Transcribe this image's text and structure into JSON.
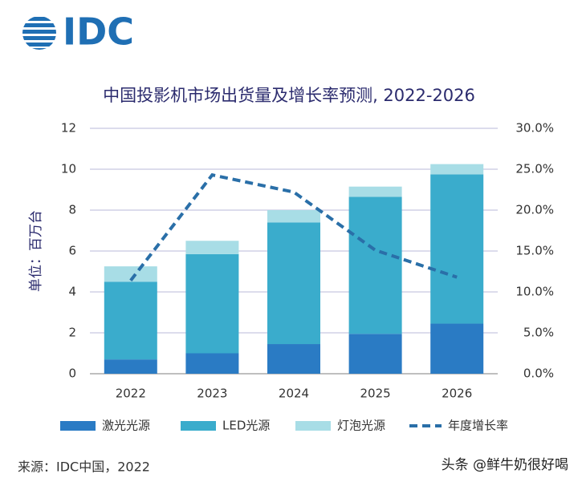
{
  "logo": "IDC",
  "chart_data": {
    "type": "bar",
    "stacked": true,
    "title": "中国投影机市场出货量及增长率预测, 2022-2026",
    "y_label": "单位：百万台",
    "categories": [
      "2022",
      "2023",
      "2024",
      "2025",
      "2026"
    ],
    "series": [
      {
        "name": "激光光源",
        "color": "#2a7bc4",
        "values": [
          0.7,
          1.0,
          1.45,
          1.95,
          2.45
        ]
      },
      {
        "name": "LED光源",
        "color": "#3aaccc",
        "values": [
          3.8,
          4.85,
          5.95,
          6.7,
          7.3
        ]
      },
      {
        "name": "灯泡光源",
        "color": "#a8dde6",
        "values": [
          0.75,
          0.65,
          0.6,
          0.5,
          0.5
        ]
      },
      {
        "name": "年度增长率",
        "color": "#2a6fa8",
        "type": "line",
        "axis": "y2",
        "values": [
          11.4,
          24.3,
          22.2,
          15.1,
          11.8
        ]
      }
    ],
    "ylim": [
      0,
      12
    ],
    "yticks": [
      0,
      2,
      4,
      6,
      8,
      10,
      12
    ],
    "y2lim": [
      0,
      30
    ],
    "y2ticks": [
      {
        "value": 0,
        "label": "0.0%"
      },
      {
        "value": 5,
        "label": "5.0%"
      },
      {
        "value": 10,
        "label": "10.0%"
      },
      {
        "value": 15,
        "label": "15.0%"
      },
      {
        "value": 20,
        "label": "20.0%"
      },
      {
        "value": 25,
        "label": "25.0%"
      },
      {
        "value": 30,
        "label": "30.0%"
      }
    ],
    "grid": true,
    "legend": "bottom"
  },
  "source": "来源：IDC中国，2022",
  "watermark": "头条 @鲜牛奶很好喝"
}
